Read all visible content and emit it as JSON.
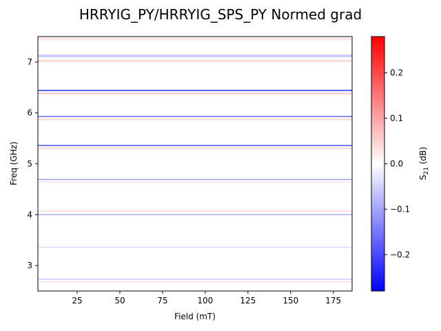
{
  "chart_data": {
    "type": "heatmap",
    "title": "HRRYIG_PY/HRRYIG_SPS_PY Normed grad",
    "xlabel": "Field (mT)",
    "ylabel": "Freq (GHz)",
    "xlim": [
      2,
      186
    ],
    "ylim": [
      2.5,
      7.5
    ],
    "x_ticks": [
      25,
      50,
      75,
      100,
      125,
      150,
      175
    ],
    "y_ticks": [
      3,
      4,
      5,
      6,
      7
    ],
    "colormap": "bwr",
    "colorbar": {
      "label": "S21 (dB)",
      "range": [
        -0.28,
        0.28
      ],
      "ticks": [
        -0.2,
        -0.1,
        0.0,
        0.1,
        0.2
      ]
    },
    "colors": {
      "negative": "#0000ff",
      "zero": "#ffffff",
      "positive": "#ff0000"
    },
    "bands": [
      {
        "freq": 7.12,
        "amplitude": -0.06,
        "width": 0.05
      },
      {
        "freq": 7.02,
        "amplitude": 0.04,
        "width": 0.04
      },
      {
        "freq": 7.45,
        "amplitude": 0.03,
        "width": 0.05
      },
      {
        "freq": 6.44,
        "amplitude": -0.2,
        "width": 0.025
      },
      {
        "freq": 6.38,
        "amplitude": 0.06,
        "width": 0.025
      },
      {
        "freq": 5.93,
        "amplitude": -0.14,
        "width": 0.025
      },
      {
        "freq": 5.87,
        "amplitude": 0.05,
        "width": 0.025
      },
      {
        "freq": 5.36,
        "amplitude": -0.16,
        "width": 0.025
      },
      {
        "freq": 5.3,
        "amplitude": 0.05,
        "width": 0.025
      },
      {
        "freq": 4.69,
        "amplitude": -0.1,
        "width": 0.022
      },
      {
        "freq": 4.64,
        "amplitude": 0.03,
        "width": 0.02
      },
      {
        "freq": 4.07,
        "amplitude": 0.05,
        "width": 0.02
      },
      {
        "freq": 4.0,
        "amplitude": -0.09,
        "width": 0.02
      },
      {
        "freq": 3.36,
        "amplitude": -0.04,
        "width": 0.02
      },
      {
        "freq": 2.73,
        "amplitude": -0.06,
        "width": 0.02
      },
      {
        "freq": 2.68,
        "amplitude": 0.04,
        "width": 0.02
      }
    ]
  }
}
